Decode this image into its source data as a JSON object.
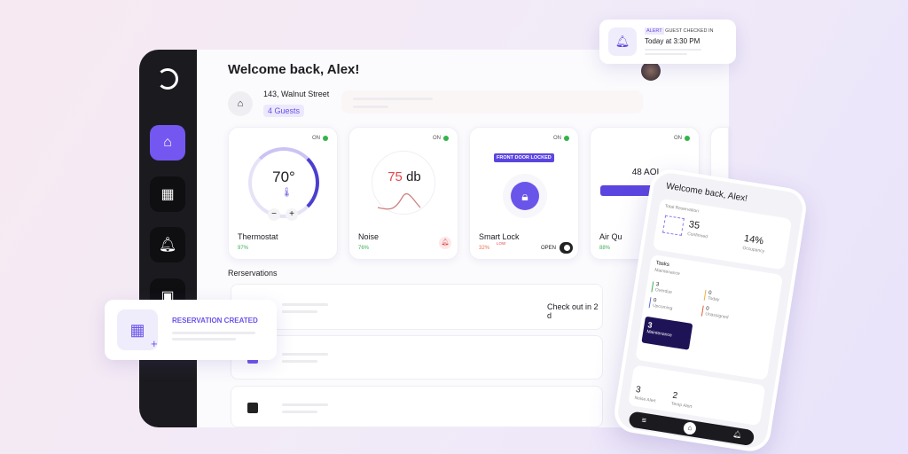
{
  "header": {
    "title": "Welcome back, Alex!",
    "address": "143, Walnut Street",
    "guests": "4 Guests"
  },
  "cards": [
    {
      "name": "Thermostat",
      "status": "ON",
      "value": "70°",
      "percent": "97%"
    },
    {
      "name": "Noise",
      "status": "ON",
      "value_num": "75",
      "value_unit": "db",
      "percent": "76%"
    },
    {
      "name": "Smart Lock",
      "status": "ON",
      "badge": "FRONT DOOR LOCKED",
      "percent": "32%",
      "low": "LOW",
      "toggle_label": "OPEN"
    },
    {
      "name": "Air Qu",
      "status": "ON",
      "value": "48 AOI",
      "percent": "88%"
    }
  ],
  "reservations": {
    "title": "Rerservations",
    "row1_text": "Check out in 2 d"
  },
  "popup_reservation": {
    "label": "RESERVATION CREATED"
  },
  "popup_alert": {
    "tag": "ALERT",
    "title": "GUEST CHECKED IN",
    "time": "Today at 3:30 PM"
  },
  "phone": {
    "title": "Welcome back, Alex!",
    "total_label": "Total Reservation",
    "confirmed_value": "35",
    "confirmed_label": "Confirmed",
    "occupancy_value": "14%",
    "occupancy_label": "Occupancy",
    "tasks_title": "Tasks",
    "tasks_sub": "Maintenance",
    "tasks": [
      {
        "value": "3",
        "label": "Overdue",
        "color": "#3fae56"
      },
      {
        "value": "0",
        "label": "Today",
        "color": "#e8b04a"
      },
      {
        "value": "0",
        "label": "Upcoming",
        "color": "#5a6fe0"
      },
      {
        "value": "0",
        "label": "Unassigned",
        "color": "#e0603a"
      }
    ],
    "maint_value": "3",
    "maint_label": "Maintenance",
    "noise_value": "3",
    "noise_label": "Noise Alert",
    "temp_value": "2",
    "temp_label": "Temp Alert"
  },
  "colors": {
    "accent": "#7357f0",
    "dark": "#1b1b1f",
    "green": "#34b34a",
    "red": "#e5484d"
  }
}
